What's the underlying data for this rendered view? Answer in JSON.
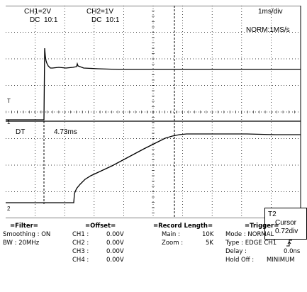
{
  "header": {
    "ch1_scale": "CH1=2V",
    "ch1_coupling": "DC  10:1",
    "ch2_scale": "CH2=1V",
    "ch2_coupling": "DC  10:1",
    "timebase": "1ms/div",
    "acq_mode": "NORM:1MS/s"
  },
  "measure": {
    "label": "DT",
    "value": "4.73ms"
  },
  "markers": {
    "trigger_level": "T",
    "ch1_ground": "1",
    "ch2_ground": "2"
  },
  "cursor_box": {
    "title": "T2",
    "line1": "Cursor",
    "line2": "0.72div"
  },
  "filter": {
    "header": "=Filter=",
    "smoothing": "Smoothing : ON",
    "bw": "BW : 20MHz"
  },
  "offset": {
    "header": "=Offset=",
    "rows": [
      {
        "ch": "CH1 :",
        "val": "0.00V"
      },
      {
        "ch": "CH2 :",
        "val": "0.00V"
      },
      {
        "ch": "CH3 :",
        "val": "0.00V"
      },
      {
        "ch": "CH4 :",
        "val": "0.00V"
      }
    ]
  },
  "record": {
    "header": "=Record Length=",
    "main_label": "Main :",
    "main_val": "10K",
    "zoom_label": "Zoom :",
    "zoom_val": "5K"
  },
  "trigger": {
    "header": "=Trigger=",
    "mode": "Mode : NORMAL",
    "type": "Type : EDGE CH1",
    "delay_label": "Delay :",
    "delay_val": "0.0ns",
    "holdoff_label": "Hold Off :",
    "holdoff_val": "MINIMUM"
  },
  "colors": {
    "trace": "#000000",
    "grid": "#000000",
    "background": "#ffffff"
  }
}
